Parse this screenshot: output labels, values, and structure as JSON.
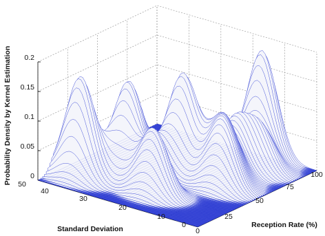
{
  "chart_data": {
    "type": "surface-3d",
    "title": "",
    "xlabel": "Reception Rate (%)",
    "ylabel": "Standard Deviation",
    "zlabel": "Probability Density by Kernel Estimation",
    "x_ticks": [
      "0",
      "25",
      "50",
      "75",
      "100"
    ],
    "y_ticks": [
      "0",
      "10",
      "20",
      "30",
      "40",
      "50"
    ],
    "z_ticks": [
      "0",
      "0.05",
      "0.1",
      "0.15",
      "0.2"
    ],
    "xlim": [
      0,
      100
    ],
    "ylim": [
      0,
      50
    ],
    "zlim": [
      0,
      0.2
    ],
    "grid": true,
    "colors": {
      "mesh": "#1f2fd0",
      "mesh_light": "#c8cce6",
      "grid": "#9a9a9a",
      "axis": "#222222"
    },
    "peaks": [
      {
        "x": 97,
        "y": 16,
        "z": 0.18
      },
      {
        "x": 17,
        "y": 43,
        "z": 0.17
      },
      {
        "x": 30,
        "y": 33,
        "z": 0.16
      },
      {
        "x": 55,
        "y": 25,
        "z": 0.165
      },
      {
        "x": 22,
        "y": 22,
        "z": 0.11
      },
      {
        "x": 50,
        "y": 11,
        "z": 0.1
      },
      {
        "x": 60,
        "y": 14,
        "z": 0.09
      },
      {
        "x": 74,
        "y": 16,
        "z": 0.08
      },
      {
        "x": 82,
        "y": 11,
        "z": 0.07
      },
      {
        "x": 42,
        "y": 30,
        "z": 0.06
      }
    ]
  }
}
